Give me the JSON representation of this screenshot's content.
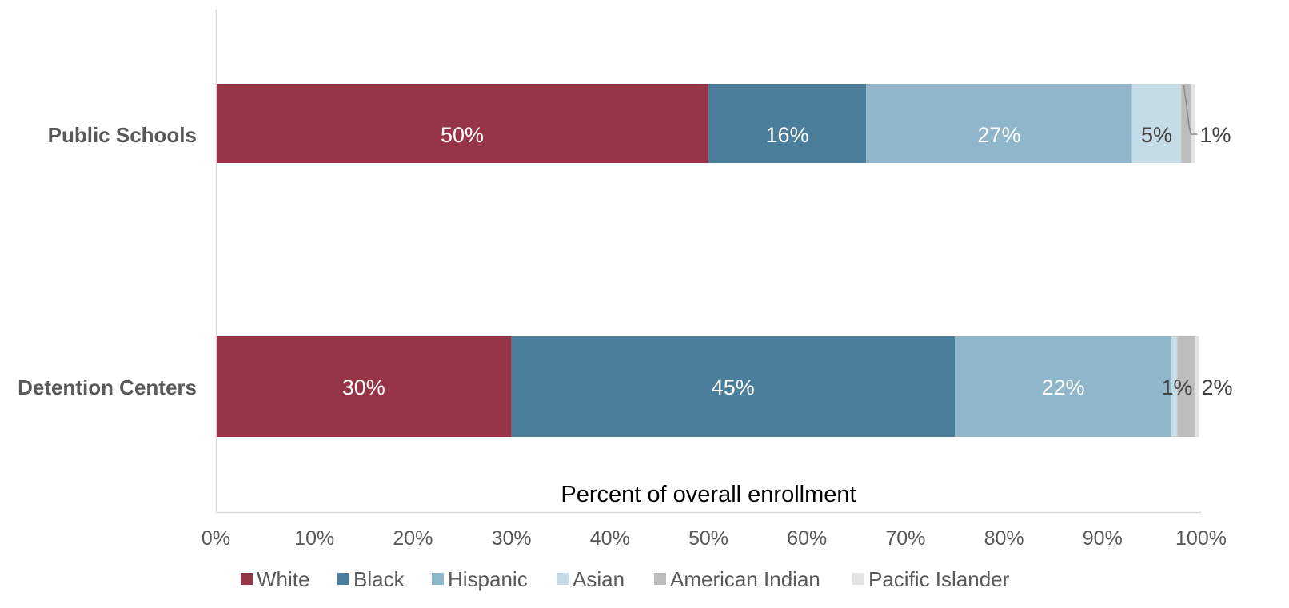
{
  "chart_data": {
    "type": "bar",
    "orientation": "horizontal",
    "stacked": true,
    "categories": [
      "Public Schools",
      "Detention Centers"
    ],
    "series": [
      {
        "name": "White",
        "color": "#963547",
        "values": [
          50,
          30
        ]
      },
      {
        "name": "Black",
        "color": "#4a7e9b",
        "values": [
          16,
          45
        ]
      },
      {
        "name": "Hispanic",
        "color": "#8fb6cb",
        "values": [
          27,
          22
        ]
      },
      {
        "name": "Asian",
        "color": "#c5dbe5",
        "values": [
          5,
          0.6
        ]
      },
      {
        "name": "American Indian",
        "color": "#bdbdbd",
        "values": [
          1,
          1.8
        ]
      },
      {
        "name": "Pacific Islander",
        "color": "#e3e3e3",
        "values": [
          0.4,
          0.4
        ]
      }
    ],
    "data_labels": [
      [
        "50%",
        "16%",
        "27%",
        "5%",
        "1%",
        ""
      ],
      [
        "30%",
        "45%",
        "22%",
        "1%",
        "2%",
        ""
      ]
    ],
    "xlabel": "Percent of overall enrollment",
    "xlim": [
      0,
      100
    ],
    "x_ticks": [
      "0%",
      "10%",
      "20%",
      "30%",
      "40%",
      "50%",
      "60%",
      "70%",
      "80%",
      "90%",
      "100%"
    ],
    "grid": false,
    "legend_position": "bottom"
  }
}
